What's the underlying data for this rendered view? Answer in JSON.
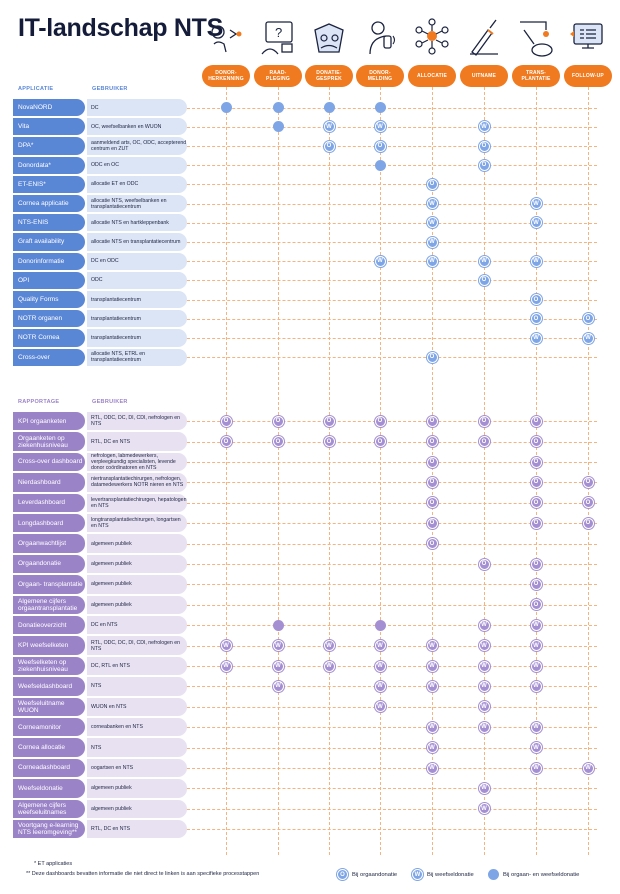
{
  "title": "IT-landschap NTS",
  "stages": [
    {
      "label": "DONOR-\nHERKENNING",
      "icon": "donor-recognition-icon"
    },
    {
      "label": "RAAD-\nPLEGING",
      "icon": "consultation-icon"
    },
    {
      "label": "DONATIE-\nGESPREK",
      "icon": "donation-conversation-icon"
    },
    {
      "label": "DONOR-\nMELDING",
      "icon": "donor-report-icon"
    },
    {
      "label": "ALLOCATIE",
      "icon": "allocation-icon"
    },
    {
      "label": "UITNAME",
      "icon": "removal-icon"
    },
    {
      "label": "TRANS-\nPLANTATIE",
      "icon": "transplantation-icon"
    },
    {
      "label": "FOLLOW-UP",
      "icon": "follow-up-icon"
    }
  ],
  "applications": {
    "header_name": "APPLICATIE",
    "header_user": "GEBRUIKER",
    "rows": [
      {
        "name": "NovaNORD",
        "user": "DC",
        "marks": [
          "B",
          "B",
          "B",
          "B",
          "",
          "",
          "",
          ""
        ]
      },
      {
        "name": "Vita",
        "user": "OC, weefselbanken en WUON",
        "marks": [
          "",
          "B",
          "W",
          "W",
          "",
          "W",
          "",
          ""
        ]
      },
      {
        "name": "DPA*",
        "user": "aanmeldend arts, OC, ODC, accepterend centrum en ZUT",
        "marks": [
          "",
          "",
          "O",
          "O",
          "",
          "O",
          "",
          ""
        ]
      },
      {
        "name": "Donordata*",
        "user": "ODC en OC",
        "marks": [
          "",
          "",
          "",
          "B",
          "",
          "O",
          "",
          ""
        ]
      },
      {
        "name": "ET-ENIS*",
        "user": "allocatie ET en ODC",
        "marks": [
          "",
          "",
          "",
          "",
          "O",
          "",
          "",
          ""
        ]
      },
      {
        "name": "Cornea applicatie",
        "user": "allocatie NTS, weefselbanken en transplantatiecentrum",
        "marks": [
          "",
          "",
          "",
          "",
          "W",
          "",
          "W",
          ""
        ]
      },
      {
        "name": "NTS-ENIS",
        "user": "allocatie NTS en hartkleppenbank",
        "marks": [
          "",
          "",
          "",
          "",
          "W",
          "",
          "W",
          ""
        ]
      },
      {
        "name": "Graft availability",
        "user": "allocatie NTS en transplantatiecentrum",
        "marks": [
          "",
          "",
          "",
          "",
          "W",
          "",
          "",
          ""
        ]
      },
      {
        "name": "Donorinformatie",
        "user": "DC en ODC",
        "marks": [
          "",
          "",
          "",
          "W",
          "W",
          "W",
          "W",
          ""
        ]
      },
      {
        "name": "OPI",
        "user": "ODC",
        "marks": [
          "",
          "",
          "",
          "",
          "",
          "O",
          "",
          ""
        ]
      },
      {
        "name": "Quality Forms",
        "user": "transplantatiecentrum",
        "marks": [
          "",
          "",
          "",
          "",
          "",
          "",
          "O",
          ""
        ]
      },
      {
        "name": "NOTR organen",
        "user": "transplantatiecentrum",
        "marks": [
          "",
          "",
          "",
          "",
          "",
          "",
          "O",
          "O"
        ]
      },
      {
        "name": "NOTR Cornea",
        "user": "transplantatiecentrum",
        "marks": [
          "",
          "",
          "",
          "",
          "",
          "",
          "W",
          "W"
        ]
      },
      {
        "name": "Cross-over",
        "user": "allocatie NTS, ETRL en transplantatiecentrum",
        "marks": [
          "",
          "",
          "",
          "",
          "O",
          "",
          "",
          ""
        ]
      }
    ]
  },
  "reports": {
    "header_name": "RAPPORTAGE",
    "header_user": "GEBRUIKER",
    "rows": [
      {
        "name": "KPI orgaanketen",
        "user": "RTL, ODC, DC, DI, CDI, nefrologen en NTS",
        "marks": [
          "O",
          "O",
          "O",
          "O",
          "O",
          "O",
          "O",
          ""
        ]
      },
      {
        "name": "Orgaanketen op ziekenhuisniveau",
        "user": "RTL, DC en NTS",
        "marks": [
          "O",
          "O",
          "O",
          "O",
          "O",
          "O",
          "O",
          ""
        ]
      },
      {
        "name": "Cross-over dashboard",
        "user": "nefrologen, labmedewerkers, verpleegkundig specialisten, levende donor coördinatoren en NTS",
        "marks": [
          "",
          "",
          "",
          "",
          "O",
          "",
          "O",
          ""
        ]
      },
      {
        "name": "Nierdashboard",
        "user": "niertransplantatiechirurgen, nefrologen, datamedewerkers NOTR nieren en NTS",
        "marks": [
          "",
          "",
          "",
          "",
          "O",
          "",
          "O",
          "O"
        ]
      },
      {
        "name": "Leverdashboard",
        "user": "levertransplantatiechirurgen, hepatologen en NTS",
        "marks": [
          "",
          "",
          "",
          "",
          "O",
          "",
          "O",
          "O"
        ]
      },
      {
        "name": "Longdashboard",
        "user": "longtransplantatiechirurgen, longartsen en NTS",
        "marks": [
          "",
          "",
          "",
          "",
          "O",
          "",
          "O",
          "O"
        ]
      },
      {
        "name": "Orgaanwachtlijst",
        "user": "algemeen publiek",
        "marks": [
          "",
          "",
          "",
          "",
          "O",
          "",
          "",
          ""
        ]
      },
      {
        "name": "Orgaandonatie",
        "user": "algemeen publiek",
        "marks": [
          "",
          "",
          "",
          "",
          "",
          "O",
          "O",
          ""
        ]
      },
      {
        "name": "Orgaan- transplantatie",
        "user": "algemeen publiek",
        "marks": [
          "",
          "",
          "",
          "",
          "",
          "",
          "O",
          ""
        ]
      },
      {
        "name": "Algemene cijfers orgaantransplantatie",
        "user": "algemeen publiek",
        "marks": [
          "",
          "",
          "",
          "",
          "",
          "",
          "O",
          ""
        ]
      },
      {
        "name": "Donatieoverzicht",
        "user": "DC en NTS",
        "marks": [
          "",
          "P",
          "",
          "P",
          "",
          "W",
          "W",
          ""
        ]
      },
      {
        "name": "KPI weefselketen",
        "user": "RTL, ODC, DC, DI, CDI, nefrologen en NTS",
        "marks": [
          "W",
          "W",
          "W",
          "W",
          "W",
          "W",
          "W",
          ""
        ]
      },
      {
        "name": "Weefselketen op ziekenhuisniveau",
        "user": "DC, RTL en NTS",
        "marks": [
          "W",
          "W",
          "W",
          "W",
          "W",
          "W",
          "W",
          ""
        ]
      },
      {
        "name": "Weefseldashboard",
        "user": "NTS",
        "marks": [
          "",
          "W",
          "",
          "W",
          "W",
          "W",
          "W",
          ""
        ]
      },
      {
        "name": "Weefseluitname WUON",
        "user": "WUON en NTS",
        "marks": [
          "",
          "",
          "",
          "W",
          "",
          "W",
          "",
          ""
        ]
      },
      {
        "name": "Corneamonitor",
        "user": "corneabanken en NTS",
        "marks": [
          "",
          "",
          "",
          "",
          "W",
          "W",
          "W",
          ""
        ]
      },
      {
        "name": "Cornea allocatie",
        "user": "NTS",
        "marks": [
          "",
          "",
          "",
          "",
          "W",
          "",
          "W",
          ""
        ]
      },
      {
        "name": "Corneadashboard",
        "user": "oogartsen en NTS",
        "marks": [
          "",
          "",
          "",
          "",
          "W",
          "",
          "W",
          "W"
        ]
      },
      {
        "name": "Weefseldonatie",
        "user": "algemeen publiek",
        "marks": [
          "",
          "",
          "",
          "",
          "",
          "W",
          "",
          ""
        ]
      },
      {
        "name": "Algemene cijfers weefseluitnames",
        "user": "algemeen publiek",
        "marks": [
          "",
          "",
          "",
          "",
          "",
          "W",
          "",
          ""
        ]
      },
      {
        "name": "Voortgang e-learning NTS leeromgeving**",
        "user": "RTL, DC en NTS",
        "marks": [
          "",
          "",
          "",
          "",
          "",
          "",
          "",
          ""
        ]
      }
    ]
  },
  "footnotes": {
    "et": "* ET applicaties",
    "dashboards": "** Deze dashboards bevatten informatie die niet direct te linken is aan specifieke processtappen"
  },
  "legend": {
    "organ": "Bij orgaandonatie",
    "tissue": "Bij weefseldonatie",
    "both": "Bij orgaan- en weefseldonatie",
    "organ_glyph": "O",
    "tissue_glyph": "W"
  },
  "colors": {
    "stage_orange": "#f07a1f",
    "app_blue": "#5a86d6",
    "app_blue_light": "#dbe5f6",
    "report_purple": "#9b83c8",
    "report_purple_light": "#e8e1f2",
    "mark_blue": "#7ea5e6",
    "mark_purple": "#a48fd2"
  }
}
